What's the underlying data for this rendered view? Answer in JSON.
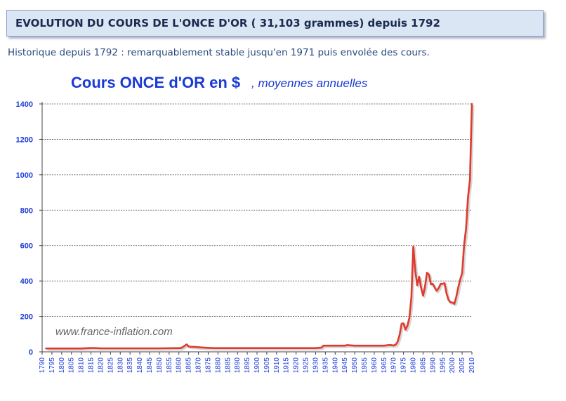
{
  "header": {
    "title": "EVOLUTION DU COURS DE L'ONCE D'OR ( 31,103 grammes) depuis 1792"
  },
  "intro": {
    "text": "Historique depuis 1792 : remarquablement stable jusqu'en 1971 puis envolée des cours."
  },
  "colors": {
    "line": "#e03a2e",
    "title": "#1a3ad6",
    "axis_text": "#1a3ad6",
    "grid": "#555555",
    "watermark": "#666666"
  },
  "chart_data": {
    "type": "line",
    "title": "Cours ONCE d'OR en $",
    "subtitle": ", moyennes annuelles",
    "watermark": "www.france-inflation.com",
    "xlabel": "",
    "ylabel": "",
    "xlim": [
      1790,
      2010
    ],
    "ylim": [
      0,
      1400
    ],
    "y_ticks": [
      0,
      200,
      400,
      600,
      800,
      1000,
      1200,
      1400
    ],
    "x_ticks": [
      1790,
      1795,
      1800,
      1805,
      1810,
      1815,
      1820,
      1825,
      1830,
      1835,
      1840,
      1845,
      1850,
      1855,
      1860,
      1865,
      1870,
      1875,
      1880,
      1885,
      1890,
      1895,
      1900,
      1905,
      1910,
      1915,
      1920,
      1925,
      1930,
      1935,
      1940,
      1945,
      1950,
      1955,
      1960,
      1965,
      1970,
      1975,
      1980,
      1985,
      1990,
      1995,
      2000,
      2005,
      2010
    ],
    "grid": "horizontal dashed",
    "series": [
      {
        "name": "",
        "x": [
          1792,
          1800,
          1810,
          1814,
          1816,
          1820,
          1830,
          1840,
          1850,
          1860,
          1861,
          1862,
          1864,
          1865,
          1866,
          1868,
          1870,
          1874,
          1878,
          1880,
          1890,
          1900,
          1910,
          1920,
          1930,
          1933,
          1934,
          1935,
          1940,
          1945,
          1946,
          1950,
          1960,
          1965,
          1968,
          1970,
          1971,
          1972,
          1973,
          1974,
          1975,
          1976,
          1977,
          1978,
          1979,
          1980,
          1981,
          1982,
          1983,
          1984,
          1985,
          1986,
          1987,
          1988,
          1989,
          1990,
          1991,
          1992,
          1993,
          1994,
          1995,
          1996,
          1997,
          1998,
          1999,
          2000,
          2001,
          2002,
          2003,
          2004,
          2005,
          2006,
          2007,
          2008,
          2009,
          2010
        ],
        "y": [
          19,
          19,
          19,
          21,
          22,
          20,
          20,
          20,
          20,
          21,
          21,
          27,
          42,
          30,
          29,
          28,
          26,
          23,
          21,
          21,
          21,
          21,
          21,
          21,
          21,
          24,
          35,
          35,
          35,
          35,
          38,
          35,
          35,
          35,
          39,
          36,
          41,
          58,
          97,
          159,
          161,
          125,
          148,
          193,
          306,
          595,
          460,
          376,
          424,
          361,
          317,
          368,
          447,
          437,
          381,
          383,
          362,
          344,
          360,
          384,
          384,
          388,
          331,
          294,
          279,
          279,
          271,
          310,
          363,
          409,
          444,
          604,
          697,
          872,
          972,
          1400
        ]
      }
    ]
  }
}
